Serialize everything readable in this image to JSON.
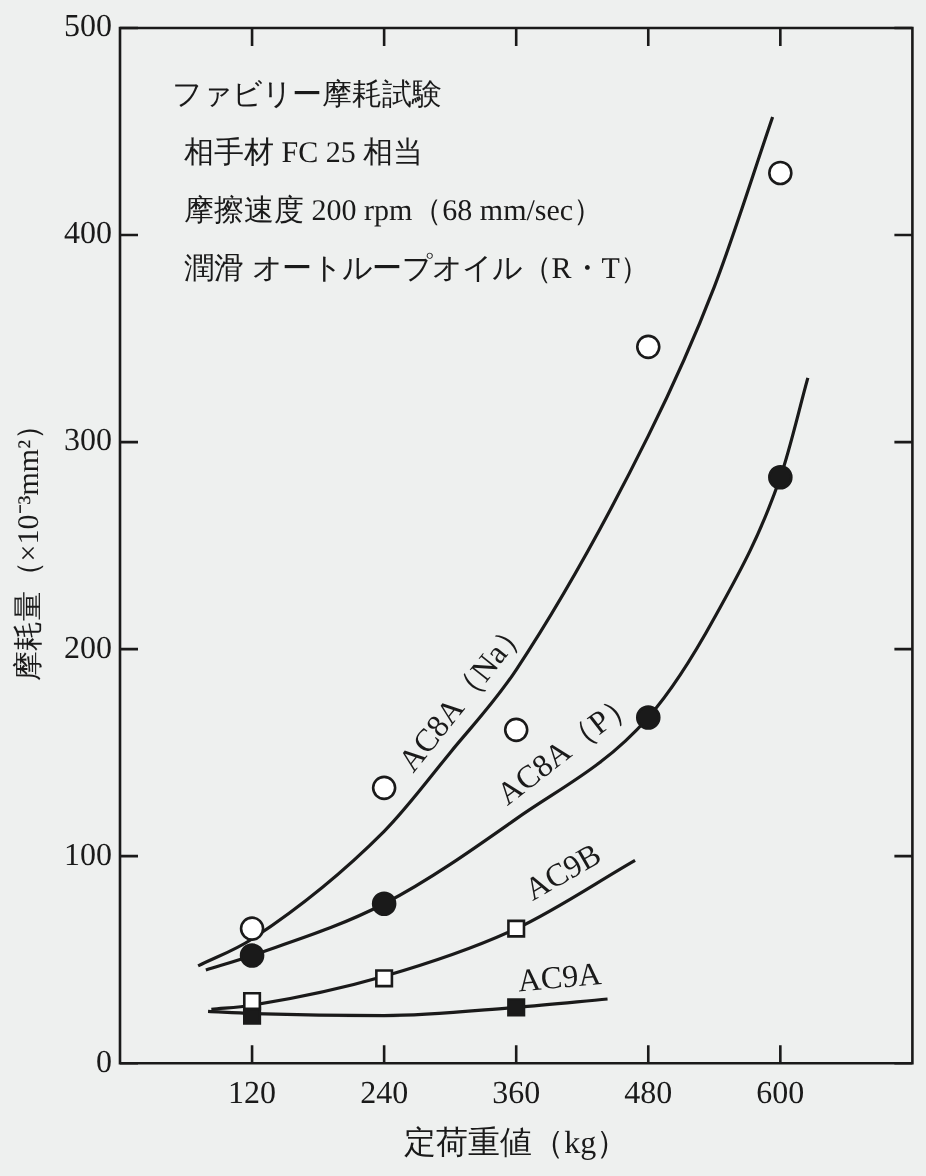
{
  "chart_data": {
    "type": "scatter",
    "xlabel": "定荷重値（kg）",
    "ylabel": "摩耗量（×10⁻³mm²）",
    "xlim": [
      0,
      720
    ],
    "xticks": [
      120,
      240,
      360,
      480,
      600
    ],
    "ylim": [
      0,
      500
    ],
    "yticks": [
      0,
      100,
      200,
      300,
      400,
      500
    ],
    "grid": false,
    "legend": false,
    "series": [
      {
        "type": "line",
        "name": "AC8A（Na）",
        "x": [
          71,
          120,
          240,
          300,
          360,
          480,
          540,
          593
        ],
        "values": [
          47,
          60,
          112,
          150,
          190,
          303,
          375,
          457
        ],
        "color": "#1a1a1a",
        "marker": "none"
      },
      {
        "type": "line",
        "name": "AC8A（P）",
        "x": [
          78,
          120,
          240,
          360,
          480,
          540,
          600,
          625
        ],
        "values": [
          45,
          52,
          77,
          118,
          167,
          215,
          283,
          331
        ],
        "color": "#1a1a1a",
        "marker": "none"
      },
      {
        "type": "line",
        "name": "AC9B",
        "x": [
          83,
          120,
          240,
          360,
          468
        ],
        "values": [
          26,
          28,
          42,
          65,
          98
        ],
        "color": "#1a1a1a",
        "marker": "none"
      },
      {
        "type": "line",
        "name": "AC9A",
        "x": [
          80,
          120,
          240,
          360,
          443
        ],
        "values": [
          25,
          24,
          23,
          27,
          31
        ],
        "color": "#1a1a1a",
        "marker": "none"
      },
      {
        "x": [
          120,
          240,
          360,
          480,
          600
        ],
        "values": [
          65,
          133,
          161,
          346,
          430
        ],
        "color": "#ffffff",
        "marker": "circle"
      },
      {
        "x": [
          120,
          240,
          480,
          600
        ],
        "values": [
          52,
          77,
          167,
          283
        ],
        "color": "#1a1a1a",
        "marker": "circle"
      },
      {
        "x": [
          120,
          240,
          360
        ],
        "values": [
          30,
          41,
          65
        ],
        "color": "#ffffff",
        "marker": "square"
      },
      {
        "x": [
          120,
          360
        ],
        "values": [
          23,
          27
        ],
        "color": "#1a1a1a",
        "marker": "square"
      }
    ],
    "annotations": [
      "ファビリー摩耗試験",
      "相手材 FC 25 相当",
      "摩擦速度 200 rpm（68 mm/sec）",
      "潤滑 オートループオイル（R・T）"
    ]
  }
}
